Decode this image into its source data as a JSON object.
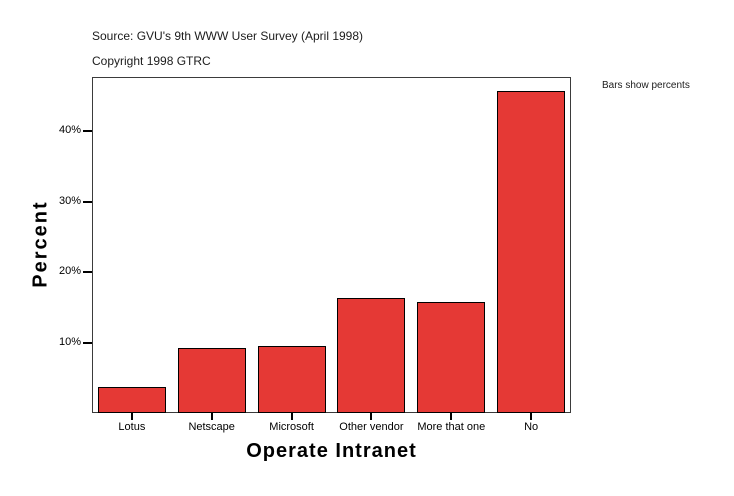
{
  "header": {
    "source_line": "Source: GVU's 9th WWW User Survey (April 1998)",
    "copyright_line": "Copyright 1998 GTRC"
  },
  "chart_data": {
    "type": "bar",
    "title": "",
    "xlabel": "Operate Intranet",
    "ylabel": "Percent",
    "categories": [
      "Lotus",
      "Netscape",
      "Microsoft",
      "Other vendor",
      "More that one",
      "No"
    ],
    "values": [
      3.7,
      9.3,
      9.5,
      16.3,
      15.8,
      45.7
    ],
    "value_unit": "percent",
    "ylim": [
      0,
      47.7
    ],
    "yticks": [
      10,
      20,
      30,
      40
    ],
    "ytick_labels": [
      "10%",
      "20%",
      "30%",
      "40%"
    ],
    "legend_note": "Bars show percents",
    "grid": false,
    "legend_position": "none",
    "colors": {
      "bar_fill": "#E53935",
      "bar_border": "#000000",
      "frame": "#3B3B3B",
      "background": "#FFFFFF"
    }
  }
}
